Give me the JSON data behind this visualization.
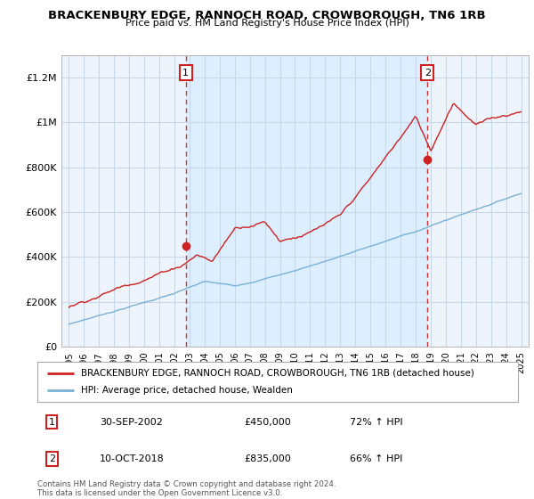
{
  "title": "BRACKENBURY EDGE, RANNOCH ROAD, CROWBOROUGH, TN6 1RB",
  "subtitle": "Price paid vs. HM Land Registry's House Price Index (HPI)",
  "ylabel_ticks": [
    "£0",
    "£200K",
    "£400K",
    "£600K",
    "£800K",
    "£1M",
    "£1.2M"
  ],
  "ylabel_values": [
    0,
    200000,
    400000,
    600000,
    800000,
    1000000,
    1200000
  ],
  "ylim": [
    0,
    1300000
  ],
  "xlim_start": 1994.5,
  "xlim_end": 2025.5,
  "line1_color": "#cc2222",
  "line2_color": "#7ab0d4",
  "vline_color": "#cc3333",
  "shade_color": "#ddeeff",
  "point1_year": 2002.75,
  "point1_value": 450000,
  "point2_year": 2018.78,
  "point2_value": 835000,
  "legend_line1": "BRACKENBURY EDGE, RANNOCH ROAD, CROWBOROUGH, TN6 1RB (detached house)",
  "legend_line2": "HPI: Average price, detached house, Wealden",
  "table_row1_num": "1",
  "table_row1_date": "30-SEP-2002",
  "table_row1_price": "£450,000",
  "table_row1_hpi": "72% ↑ HPI",
  "table_row2_num": "2",
  "table_row2_date": "10-OCT-2018",
  "table_row2_price": "£835,000",
  "table_row2_hpi": "66% ↑ HPI",
  "footer": "Contains HM Land Registry data © Crown copyright and database right 2024.\nThis data is licensed under the Open Government Licence v3.0.",
  "bg_color": "#ffffff",
  "plot_bg_color": "#eef4fb",
  "grid_color": "#c8d8e8"
}
